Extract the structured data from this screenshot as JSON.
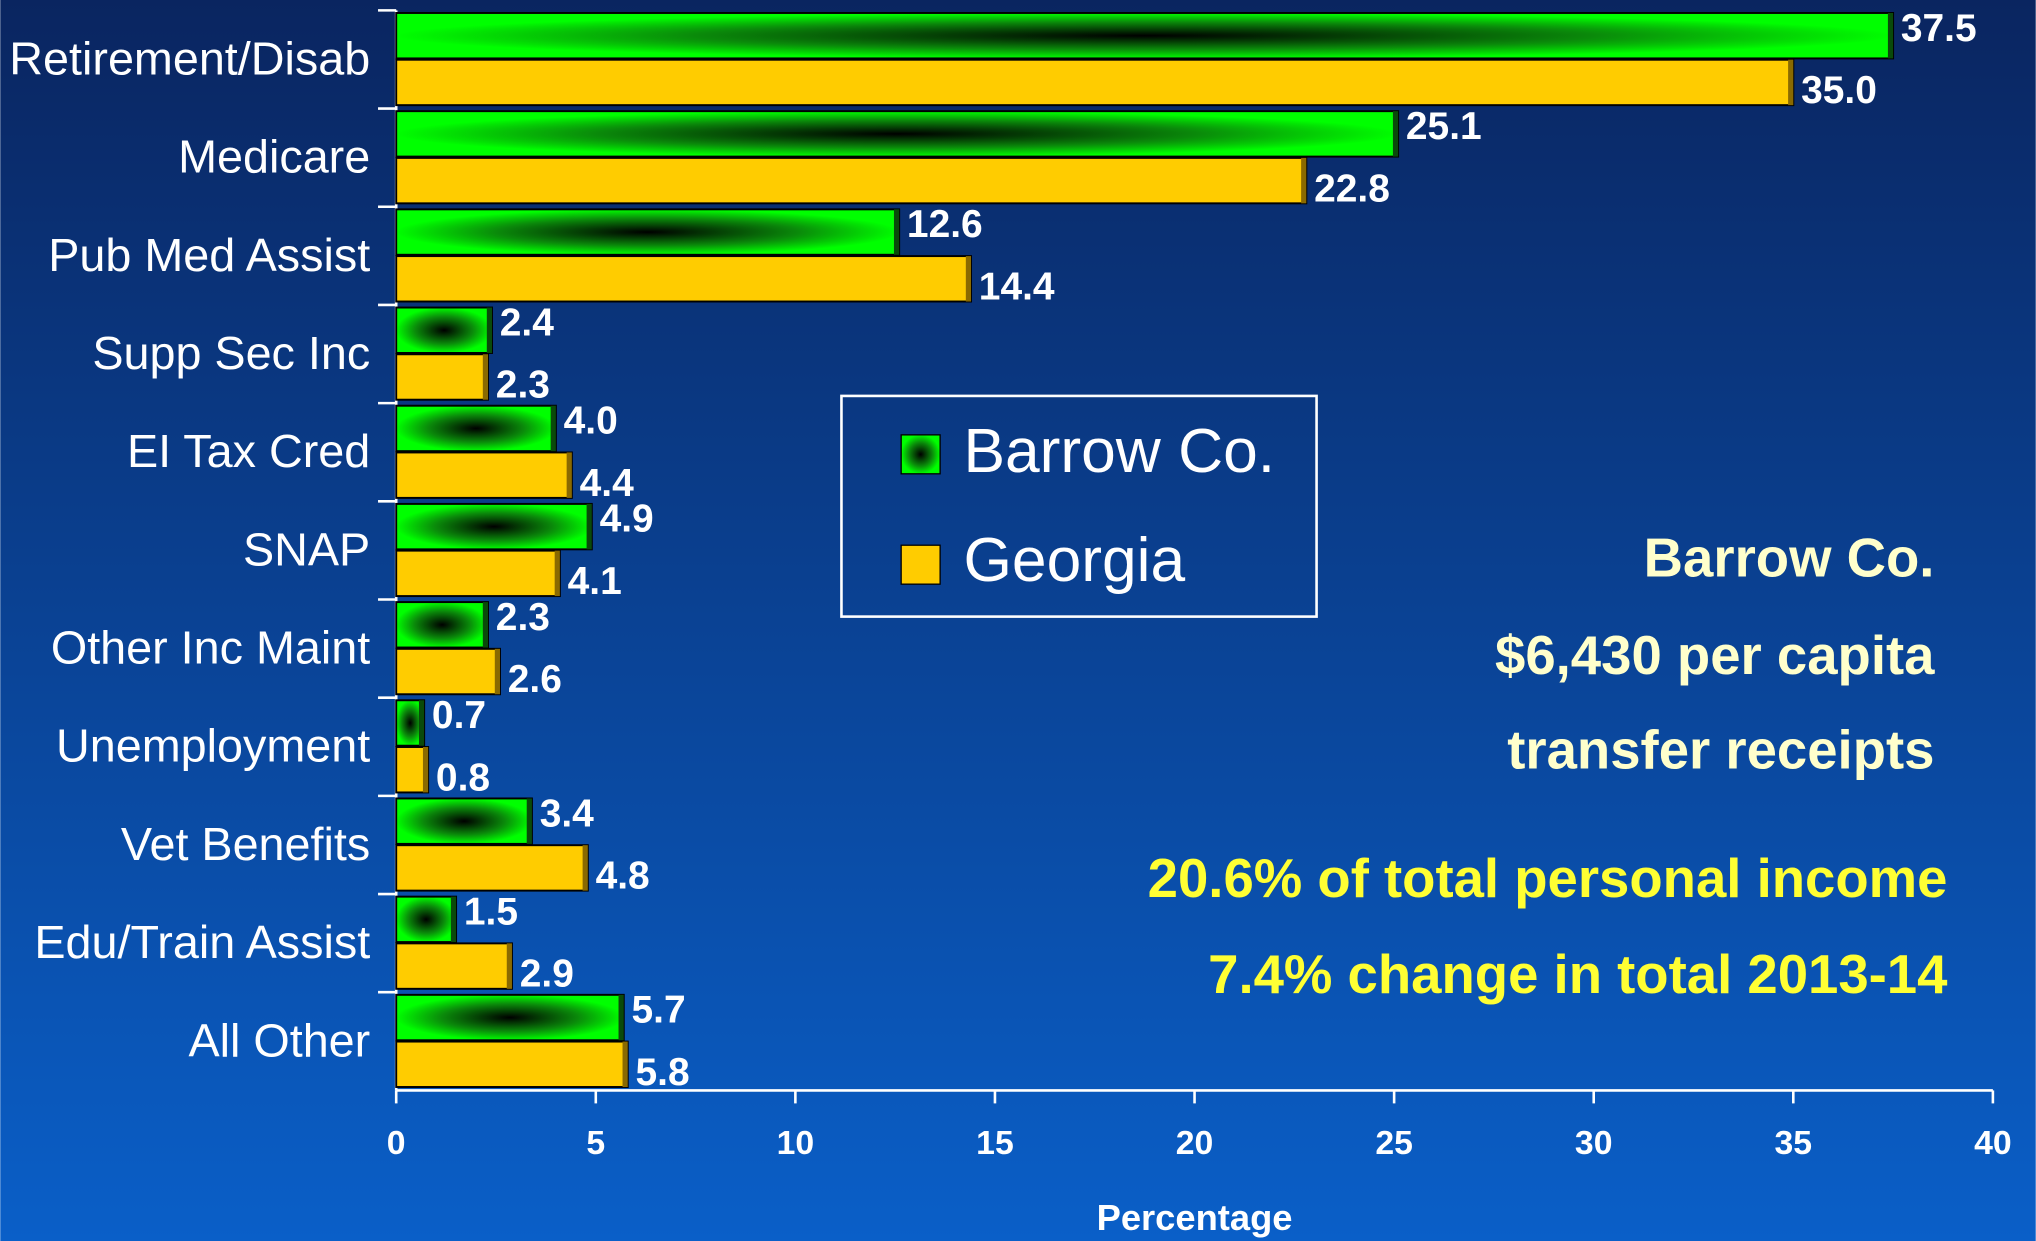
{
  "chart_data": {
    "type": "bar",
    "orientation": "horizontal",
    "categories": [
      "Retirement/Disab",
      "Medicare",
      "Pub Med Assist",
      "Supp Sec Inc",
      "EI Tax Cred",
      "SNAP",
      "Other Inc Maint",
      "Unemployment",
      "Vet Benefits",
      "Edu/Train Assist",
      "All Other"
    ],
    "series": [
      {
        "name": "Barrow Co.",
        "color": "#00ff00",
        "values": [
          37.5,
          25.1,
          12.6,
          2.4,
          4.0,
          4.9,
          2.3,
          0.7,
          3.4,
          1.5,
          5.7
        ],
        "value_labels": [
          "37.5",
          "25.1",
          "12.6",
          "2.4",
          "4.0",
          "4.9",
          "2.3",
          "0.7",
          "3.4",
          "1.5",
          "5.7"
        ]
      },
      {
        "name": "Georgia",
        "color": "#ffcc00",
        "values": [
          35.0,
          22.8,
          14.4,
          2.3,
          4.4,
          4.1,
          2.6,
          0.8,
          4.8,
          2.9,
          5.8
        ],
        "value_labels": [
          "35.0",
          "22.8",
          "14.4",
          "2.3",
          "4.4",
          "4.1",
          "2.6",
          "0.8",
          "4.8",
          "2.9",
          "5.8"
        ]
      }
    ],
    "xlabel": "Percentage",
    "xlim": [
      0,
      40
    ],
    "xticks": [
      0,
      5,
      10,
      15,
      20,
      25,
      30,
      35,
      40
    ],
    "annotations": [
      "Barrow Co.",
      "$6,430 per capita",
      "transfer receipts",
      "20.6% of total personal income",
      "7.4% change in total 2013-14"
    ],
    "legend": "center"
  }
}
